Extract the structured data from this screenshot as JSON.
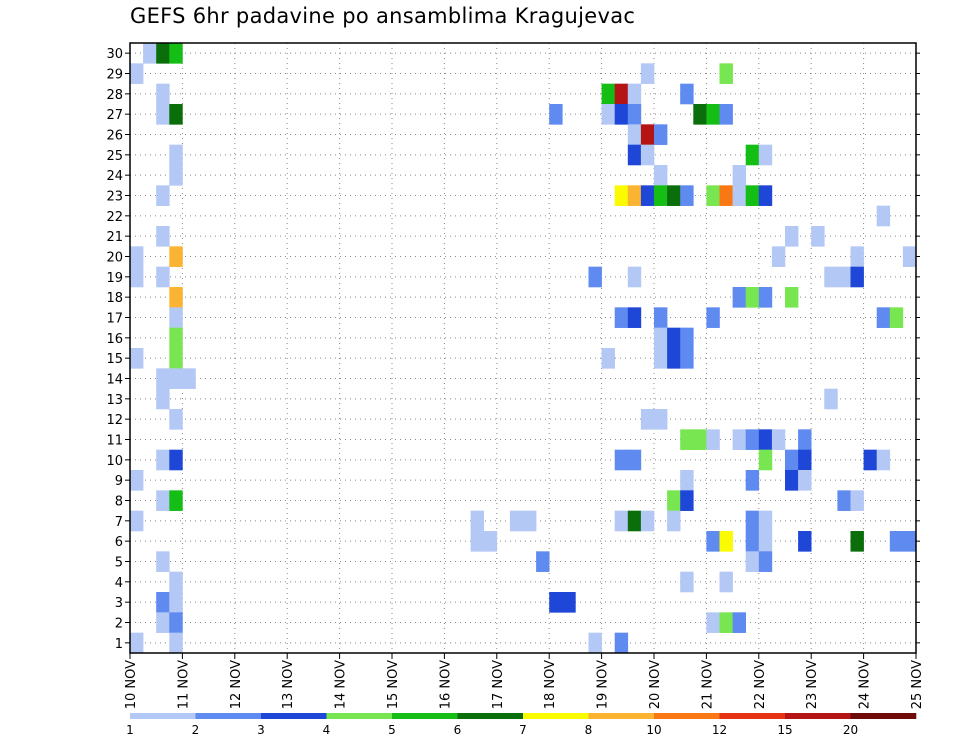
{
  "chart_data": {
    "type": "heatmap",
    "title": "GEFS 6hr padavine po ansamblima Kragujevac",
    "xlabel": "",
    "ylabel": "",
    "x_ticks": [
      "10 NOV",
      "11 NOV",
      "12 NOV",
      "13 NOV",
      "14 NOV",
      "15 NOV",
      "16 NOV",
      "17 NOV",
      "18 NOV",
      "19 NOV",
      "20 NOV",
      "21 NOV",
      "22 NOV",
      "23 NOV",
      "24 NOV",
      "25 NOV"
    ],
    "y_ticks": [
      1,
      2,
      3,
      4,
      5,
      6,
      7,
      8,
      9,
      10,
      11,
      12,
      13,
      14,
      15,
      16,
      17,
      18,
      19,
      20,
      21,
      22,
      23,
      24,
      25,
      26,
      27,
      28,
      29,
      30
    ],
    "xlim": [
      0,
      60
    ],
    "ylim": [
      0.5,
      30.5
    ],
    "x_step_hours": 6,
    "grid": true,
    "colorbar": {
      "labels": [
        "1",
        "2",
        "3",
        "4",
        "5",
        "6",
        "7",
        "8",
        "10",
        "12",
        "15",
        "20"
      ],
      "colors": [
        "#b4c8f5",
        "#5f8af0",
        "#1e46d7",
        "#78e650",
        "#14be14",
        "#0a6e0a",
        "#fafa00",
        "#fab432",
        "#fa7814",
        "#e63214",
        "#b41414",
        "#6e0a0a"
      ]
    },
    "cells": [
      {
        "x": 1,
        "y": 30,
        "v": 1
      },
      {
        "x": 2,
        "y": 30,
        "v": 6
      },
      {
        "x": 3,
        "y": 30,
        "v": 5
      },
      {
        "x": 0,
        "y": 29,
        "v": 1
      },
      {
        "x": 39,
        "y": 29,
        "v": 1
      },
      {
        "x": 45,
        "y": 29,
        "v": 4
      },
      {
        "x": 2,
        "y": 28,
        "v": 1
      },
      {
        "x": 36,
        "y": 28,
        "v": 5
      },
      {
        "x": 37,
        "y": 28,
        "v": 11
      },
      {
        "x": 38,
        "y": 28,
        "v": 1
      },
      {
        "x": 42,
        "y": 28,
        "v": 2
      },
      {
        "x": 2,
        "y": 27,
        "v": 1
      },
      {
        "x": 3,
        "y": 27,
        "v": 6
      },
      {
        "x": 32,
        "y": 27,
        "v": 2
      },
      {
        "x": 36,
        "y": 27,
        "v": 1
      },
      {
        "x": 37,
        "y": 27,
        "v": 3
      },
      {
        "x": 38,
        "y": 27,
        "v": 2
      },
      {
        "x": 43,
        "y": 27,
        "v": 6
      },
      {
        "x": 44,
        "y": 27,
        "v": 5
      },
      {
        "x": 45,
        "y": 27,
        "v": 2
      },
      {
        "x": 38,
        "y": 26,
        "v": 1
      },
      {
        "x": 39,
        "y": 26,
        "v": 11
      },
      {
        "x": 40,
        "y": 26,
        "v": 2
      },
      {
        "x": 3,
        "y": 25,
        "v": 1
      },
      {
        "x": 38,
        "y": 25,
        "v": 3
      },
      {
        "x": 39,
        "y": 25,
        "v": 1
      },
      {
        "x": 47,
        "y": 25,
        "v": 5
      },
      {
        "x": 48,
        "y": 25,
        "v": 1
      },
      {
        "x": 3,
        "y": 24,
        "v": 1
      },
      {
        "x": 40,
        "y": 24,
        "v": 1
      },
      {
        "x": 46,
        "y": 24,
        "v": 1
      },
      {
        "x": 2,
        "y": 23,
        "v": 1
      },
      {
        "x": 37,
        "y": 23,
        "v": 7
      },
      {
        "x": 38,
        "y": 23,
        "v": 8
      },
      {
        "x": 39,
        "y": 23,
        "v": 3
      },
      {
        "x": 40,
        "y": 23,
        "v": 5
      },
      {
        "x": 41,
        "y": 23,
        "v": 6
      },
      {
        "x": 42,
        "y": 23,
        "v": 2
      },
      {
        "x": 44,
        "y": 23,
        "v": 4
      },
      {
        "x": 45,
        "y": 23,
        "v": 9
      },
      {
        "x": 46,
        "y": 23,
        "v": 1
      },
      {
        "x": 47,
        "y": 23,
        "v": 5
      },
      {
        "x": 48,
        "y": 23,
        "v": 3
      },
      {
        "x": 57,
        "y": 22,
        "v": 1
      },
      {
        "x": 2,
        "y": 21,
        "v": 1
      },
      {
        "x": 50,
        "y": 21,
        "v": 1
      },
      {
        "x": 52,
        "y": 21,
        "v": 1
      },
      {
        "x": 0,
        "y": 20,
        "v": 1
      },
      {
        "x": 3,
        "y": 20,
        "v": 8
      },
      {
        "x": 49,
        "y": 20,
        "v": 1
      },
      {
        "x": 55,
        "y": 20,
        "v": 1
      },
      {
        "x": 59,
        "y": 20,
        "v": 1
      },
      {
        "x": 0,
        "y": 19,
        "v": 1
      },
      {
        "x": 2,
        "y": 19,
        "v": 1
      },
      {
        "x": 35,
        "y": 19,
        "v": 2
      },
      {
        "x": 38,
        "y": 19,
        "v": 1
      },
      {
        "x": 53,
        "y": 19,
        "v": 1
      },
      {
        "x": 54,
        "y": 19,
        "v": 1
      },
      {
        "x": 55,
        "y": 19,
        "v": 3
      },
      {
        "x": 3,
        "y": 18,
        "v": 8
      },
      {
        "x": 46,
        "y": 18,
        "v": 2
      },
      {
        "x": 47,
        "y": 18,
        "v": 4
      },
      {
        "x": 48,
        "y": 18,
        "v": 2
      },
      {
        "x": 50,
        "y": 18,
        "v": 4
      },
      {
        "x": 3,
        "y": 17,
        "v": 1
      },
      {
        "x": 37,
        "y": 17,
        "v": 2
      },
      {
        "x": 38,
        "y": 17,
        "v": 3
      },
      {
        "x": 40,
        "y": 17,
        "v": 2
      },
      {
        "x": 44,
        "y": 17,
        "v": 2
      },
      {
        "x": 57,
        "y": 17,
        "v": 2
      },
      {
        "x": 58,
        "y": 17,
        "v": 4
      },
      {
        "x": 3,
        "y": 16,
        "v": 4
      },
      {
        "x": 40,
        "y": 16,
        "v": 1
      },
      {
        "x": 41,
        "y": 16,
        "v": 3
      },
      {
        "x": 42,
        "y": 16,
        "v": 2
      },
      {
        "x": 0,
        "y": 15,
        "v": 1
      },
      {
        "x": 3,
        "y": 15,
        "v": 4
      },
      {
        "x": 36,
        "y": 15,
        "v": 1
      },
      {
        "x": 40,
        "y": 15,
        "v": 1
      },
      {
        "x": 41,
        "y": 15,
        "v": 3
      },
      {
        "x": 42,
        "y": 15,
        "v": 2
      },
      {
        "x": 2,
        "y": 14,
        "v": 1
      },
      {
        "x": 3,
        "y": 14,
        "v": 1
      },
      {
        "x": 4,
        "y": 14,
        "v": 1
      },
      {
        "x": 2,
        "y": 13,
        "v": 1
      },
      {
        "x": 53,
        "y": 13,
        "v": 1
      },
      {
        "x": 3,
        "y": 12,
        "v": 1
      },
      {
        "x": 39,
        "y": 12,
        "v": 1
      },
      {
        "x": 40,
        "y": 12,
        "v": 1
      },
      {
        "x": 42,
        "y": 11,
        "v": 4
      },
      {
        "x": 43,
        "y": 11,
        "v": 4
      },
      {
        "x": 44,
        "y": 11,
        "v": 1
      },
      {
        "x": 46,
        "y": 11,
        "v": 1
      },
      {
        "x": 47,
        "y": 11,
        "v": 2
      },
      {
        "x": 48,
        "y": 11,
        "v": 3
      },
      {
        "x": 49,
        "y": 11,
        "v": 1
      },
      {
        "x": 51,
        "y": 11,
        "v": 2
      },
      {
        "x": 2,
        "y": 10,
        "v": 1
      },
      {
        "x": 3,
        "y": 10,
        "v": 3
      },
      {
        "x": 37,
        "y": 10,
        "v": 2
      },
      {
        "x": 38,
        "y": 10,
        "v": 2
      },
      {
        "x": 48,
        "y": 10,
        "v": 4
      },
      {
        "x": 50,
        "y": 10,
        "v": 2
      },
      {
        "x": 51,
        "y": 10,
        "v": 3
      },
      {
        "x": 56,
        "y": 10,
        "v": 3
      },
      {
        "x": 57,
        "y": 10,
        "v": 1
      },
      {
        "x": 0,
        "y": 9,
        "v": 1
      },
      {
        "x": 42,
        "y": 9,
        "v": 1
      },
      {
        "x": 47,
        "y": 9,
        "v": 2
      },
      {
        "x": 50,
        "y": 9,
        "v": 3
      },
      {
        "x": 51,
        "y": 9,
        "v": 1
      },
      {
        "x": 2,
        "y": 8,
        "v": 1
      },
      {
        "x": 3,
        "y": 8,
        "v": 5
      },
      {
        "x": 41,
        "y": 8,
        "v": 4
      },
      {
        "x": 42,
        "y": 8,
        "v": 3
      },
      {
        "x": 54,
        "y": 8,
        "v": 2
      },
      {
        "x": 55,
        "y": 8,
        "v": 1
      },
      {
        "x": 0,
        "y": 7,
        "v": 1
      },
      {
        "x": 26,
        "y": 7,
        "v": 1
      },
      {
        "x": 29,
        "y": 7,
        "v": 1
      },
      {
        "x": 30,
        "y": 7,
        "v": 1
      },
      {
        "x": 37,
        "y": 7,
        "v": 1
      },
      {
        "x": 38,
        "y": 7,
        "v": 6
      },
      {
        "x": 39,
        "y": 7,
        "v": 1
      },
      {
        "x": 41,
        "y": 7,
        "v": 1
      },
      {
        "x": 47,
        "y": 7,
        "v": 2
      },
      {
        "x": 48,
        "y": 7,
        "v": 1
      },
      {
        "x": 26,
        "y": 6,
        "v": 1
      },
      {
        "x": 27,
        "y": 6,
        "v": 1
      },
      {
        "x": 44,
        "y": 6,
        "v": 2
      },
      {
        "x": 45,
        "y": 6,
        "v": 7
      },
      {
        "x": 47,
        "y": 6,
        "v": 2
      },
      {
        "x": 48,
        "y": 6,
        "v": 1
      },
      {
        "x": 51,
        "y": 6,
        "v": 3
      },
      {
        "x": 55,
        "y": 6,
        "v": 6
      },
      {
        "x": 58,
        "y": 6,
        "v": 2
      },
      {
        "x": 59,
        "y": 6,
        "v": 2
      },
      {
        "x": 2,
        "y": 5,
        "v": 1
      },
      {
        "x": 31,
        "y": 5,
        "v": 2
      },
      {
        "x": 47,
        "y": 5,
        "v": 1
      },
      {
        "x": 48,
        "y": 5,
        "v": 2
      },
      {
        "x": 3,
        "y": 4,
        "v": 1
      },
      {
        "x": 42,
        "y": 4,
        "v": 1
      },
      {
        "x": 45,
        "y": 4,
        "v": 1
      },
      {
        "x": 2,
        "y": 3,
        "v": 2
      },
      {
        "x": 3,
        "y": 3,
        "v": 1
      },
      {
        "x": 32,
        "y": 3,
        "v": 3
      },
      {
        "x": 33,
        "y": 3,
        "v": 3
      },
      {
        "x": 2,
        "y": 2,
        "v": 1
      },
      {
        "x": 3,
        "y": 2,
        "v": 2
      },
      {
        "x": 44,
        "y": 2,
        "v": 1
      },
      {
        "x": 45,
        "y": 2,
        "v": 4
      },
      {
        "x": 46,
        "y": 2,
        "v": 2
      },
      {
        "x": 0,
        "y": 1,
        "v": 1
      },
      {
        "x": 3,
        "y": 1,
        "v": 1
      },
      {
        "x": 35,
        "y": 1,
        "v": 1
      },
      {
        "x": 37,
        "y": 1,
        "v": 2
      }
    ]
  }
}
